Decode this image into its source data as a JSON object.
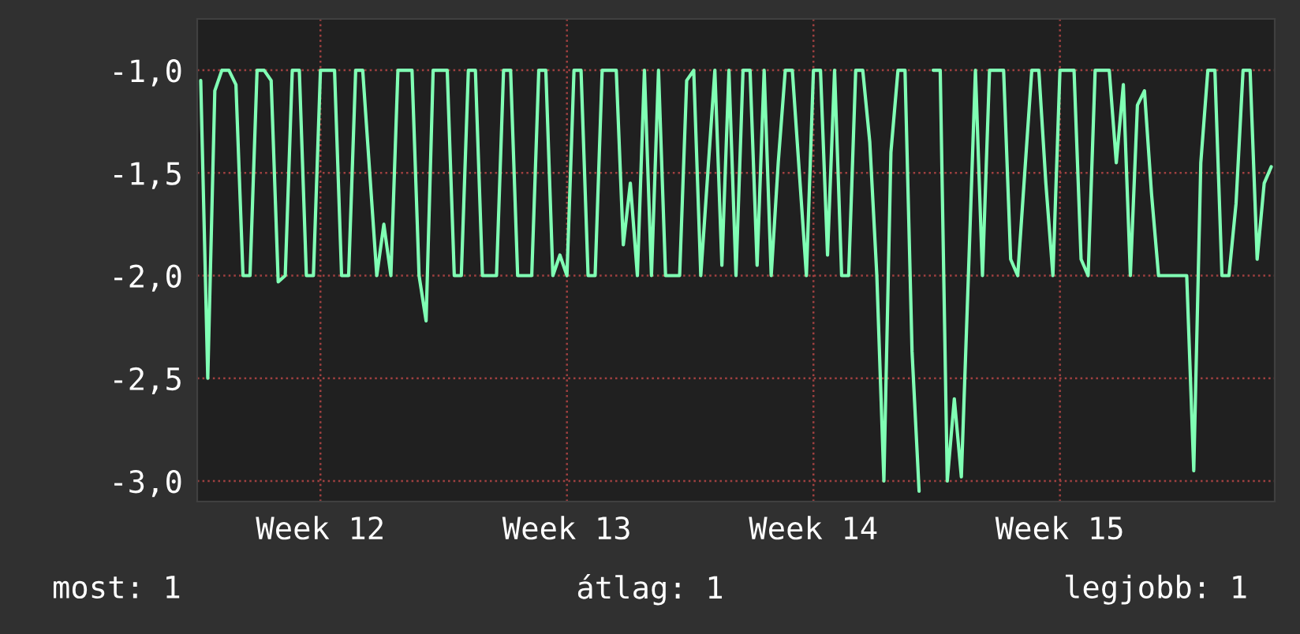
{
  "chart_data": {
    "type": "line",
    "ylim": [
      -3.1,
      -0.75
    ],
    "categories": [
      null,
      null,
      null,
      null,
      null,
      null,
      null,
      null,
      null,
      null,
      null,
      null,
      null,
      null,
      null,
      null,
      null,
      "Week 12",
      null,
      null,
      null,
      null,
      null,
      null,
      null,
      null,
      null,
      null,
      null,
      null,
      null,
      null,
      null,
      null,
      null,
      null,
      null,
      null,
      null,
      null,
      null,
      null,
      null,
      null,
      null,
      null,
      null,
      null,
      null,
      null,
      null,
      null,
      "Week 13",
      null,
      null,
      null,
      null,
      null,
      null,
      null,
      null,
      null,
      null,
      null,
      null,
      null,
      null,
      null,
      null,
      null,
      null,
      null,
      null,
      null,
      null,
      null,
      null,
      null,
      null,
      null,
      null,
      null,
      null,
      null,
      null,
      null,
      null,
      "Week 14",
      null,
      null,
      null,
      null,
      null,
      null,
      null,
      null,
      null,
      null,
      null,
      null,
      null,
      null,
      null,
      null,
      null,
      null,
      null,
      null,
      null,
      null,
      null,
      null,
      null,
      null,
      null,
      null,
      null,
      null,
      null,
      null,
      null,
      null,
      "Week 15",
      null,
      null,
      null,
      null,
      null,
      null,
      null,
      null,
      null,
      null,
      null,
      null,
      null,
      null,
      null,
      null,
      null,
      null,
      null,
      null,
      null,
      null,
      null,
      null,
      null,
      null,
      null,
      null,
      null,
      null
    ],
    "yticks": [
      {
        "value": -3,
        "label": "-3,0"
      },
      {
        "value": -2.5,
        "label": "-2,5"
      },
      {
        "value": -2,
        "label": "-2,0"
      },
      {
        "value": -1.5,
        "label": "-1,5"
      },
      {
        "value": -1,
        "label": "-1,0"
      }
    ],
    "grid": true,
    "marker": "none",
    "line_style": "solid",
    "annotations": [
      "most: 1",
      "átlag: 1",
      "legjobb: 1"
    ],
    "series": [
      {
        "color": "#80ffb4",
        "values": [
          -1.05,
          -2.5,
          -1.1,
          -1.0,
          -1.0,
          -1.07,
          -2.0,
          -2.0,
          -1.0,
          -1.0,
          -1.05,
          -2.03,
          -2.0,
          -1.0,
          -1.0,
          -2.0,
          -2.0,
          -1.0,
          -1.0,
          -1.0,
          -2.0,
          -2.0,
          -1.0,
          -1.0,
          -1.5,
          -2.0,
          -1.75,
          -2.0,
          -1.0,
          -1.0,
          -1.0,
          -2.0,
          -2.22,
          -1.0,
          -1.0,
          -1.0,
          -2.0,
          -2.0,
          -1.0,
          -1.0,
          -2.0,
          -2.0,
          -2.0,
          -1.0,
          -1.0,
          -2.0,
          -2.0,
          -2.0,
          -1.0,
          -1.0,
          -2.0,
          -1.9,
          -2.0,
          -1.0,
          -1.0,
          -2.0,
          -2.0,
          -1.0,
          -1.0,
          -1.0,
          -1.85,
          -1.55,
          -2.0,
          -1.0,
          -2.0,
          -1.0,
          -2.0,
          -2.0,
          -2.0,
          -1.05,
          -1.0,
          -2.0,
          -1.5,
          -1.0,
          -1.95,
          -1.0,
          -2.0,
          -1.0,
          -1.0,
          -1.95,
          -1.0,
          -2.0,
          -1.45,
          -1.0,
          -1.0,
          -1.5,
          -2.0,
          -1.0,
          -1.0,
          -1.9,
          -1.0,
          -2.0,
          -2.0,
          -1.0,
          -1.0,
          -1.35,
          -2.0,
          -3.0,
          -1.4,
          -1.0,
          -1.0,
          -2.37,
          -3.05,
          null,
          -1.0,
          -1.0,
          -3.0,
          -2.6,
          -2.98,
          -2.0,
          -1.0,
          -2.0,
          -1.0,
          -1.0,
          -1.0,
          -1.92,
          -2.0,
          -1.5,
          -1.0,
          -1.0,
          -1.55,
          -2.0,
          -1.0,
          -1.0,
          -1.0,
          -1.92,
          -2.0,
          -1.0,
          -1.0,
          -1.0,
          -1.45,
          -1.07,
          -2.0,
          -1.17,
          -1.1,
          -1.6,
          -2.0,
          -2.0,
          -2.0,
          -2.0,
          -2.0,
          -2.95,
          -1.45,
          -1.0,
          -1.0,
          -2.0,
          -2.0,
          -1.65,
          -1.0,
          -1.0,
          -1.92,
          -1.55,
          -1.47
        ]
      }
    ]
  }
}
